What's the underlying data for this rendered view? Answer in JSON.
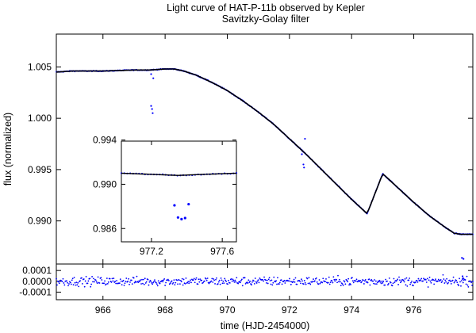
{
  "chart_data": [
    {
      "type": "scatter",
      "role": "main",
      "title": "Light curve of HAT-P-11b observed by Kepler",
      "subtitle": "Savitzky-Golay filter",
      "xlabel": "",
      "ylabel": "flux (normalized)",
      "xlim": [
        964.5,
        977.9
      ],
      "ylim": [
        0.9858,
        1.0082
      ],
      "yticks": [
        0.99,
        0.995,
        1.0,
        1.005
      ],
      "ytick_labels": [
        "0.990",
        "0.995",
        "1.000",
        "1.005"
      ],
      "grid": false,
      "legend": "none",
      "color": "#0000ff",
      "fit_color": "#000000",
      "trend_x": [
        964.5,
        965.0,
        966.0,
        967.0,
        967.5,
        968.0,
        968.3,
        968.6,
        969.0,
        969.5,
        970.0,
        970.5,
        971.0,
        971.5,
        972.0,
        972.5,
        973.0,
        973.5,
        974.0,
        974.5,
        975.0,
        975.5,
        976.0,
        976.5,
        977.0,
        977.3,
        977.5,
        977.8
      ],
      "trend_y": [
        1.0045,
        1.0046,
        1.0046,
        1.0047,
        1.0047,
        1.0048,
        1.0048,
        1.0046,
        1.0042,
        1.0035,
        1.0027,
        1.0017,
        1.0006,
        0.9994,
        0.998,
        0.9966,
        0.9951,
        0.9936,
        0.9921,
        0.9907,
        0.9946,
        0.9932,
        0.9918,
        0.9905,
        0.9894,
        0.9888,
        0.9887,
        0.9887
      ],
      "outliers": [
        {
          "x": 967.55,
          "y": 1.0043
        },
        {
          "x": 967.62,
          "y": 1.0039
        },
        {
          "x": 967.55,
          "y": 1.0012
        },
        {
          "x": 967.58,
          "y": 1.0009
        },
        {
          "x": 967.6,
          "y": 1.0005
        },
        {
          "x": 972.4,
          "y": 0.9965
        },
        {
          "x": 972.45,
          "y": 0.9955
        },
        {
          "x": 972.47,
          "y": 0.9952
        },
        {
          "x": 972.5,
          "y": 0.998
        },
        {
          "x": 977.55,
          "y": 0.9864
        },
        {
          "x": 977.6,
          "y": 0.9863
        },
        {
          "x": 977.57,
          "y": 0.9846
        },
        {
          "x": 977.59,
          "y": 0.9844
        }
      ]
    },
    {
      "type": "scatter",
      "role": "inset",
      "xlim": [
        977.03,
        977.68
      ],
      "ylim": [
        0.9848,
        0.9939
      ],
      "xticks": [
        977.2,
        977.6
      ],
      "xtick_labels": [
        "977.2",
        "977.6"
      ],
      "yticks": [
        0.986,
        0.99,
        0.994
      ],
      "ytick_labels": [
        "0.986",
        "0.990",
        "0.994"
      ],
      "color": "#0000ff",
      "fit_color": "#000000",
      "trend_x": [
        977.03,
        977.2,
        977.35,
        977.5,
        977.68
      ],
      "trend_y": [
        0.991,
        0.9909,
        0.9908,
        0.9909,
        0.991
      ],
      "points": [
        {
          "x": 977.33,
          "y": 0.9881
        },
        {
          "x": 977.35,
          "y": 0.987
        },
        {
          "x": 977.37,
          "y": 0.98685
        },
        {
          "x": 977.39,
          "y": 0.98695
        },
        {
          "x": 977.41,
          "y": 0.9882
        }
      ]
    },
    {
      "type": "scatter",
      "role": "residuals",
      "xlabel": "time (HJD-2454000)",
      "ylabel": "",
      "xlim": [
        964.5,
        977.9
      ],
      "ylim": [
        -0.00017,
        0.00016
      ],
      "xticks": [
        966,
        968,
        970,
        972,
        974,
        976
      ],
      "xtick_labels": [
        "966",
        "968",
        "970",
        "972",
        "974",
        "976"
      ],
      "yticks": [
        -0.0001,
        0.0,
        0.0001
      ],
      "ytick_labels": [
        "-0.0001",
        "0.0000",
        "0.0001"
      ],
      "color": "#0000ff",
      "noise_sigma": 4e-05
    }
  ]
}
